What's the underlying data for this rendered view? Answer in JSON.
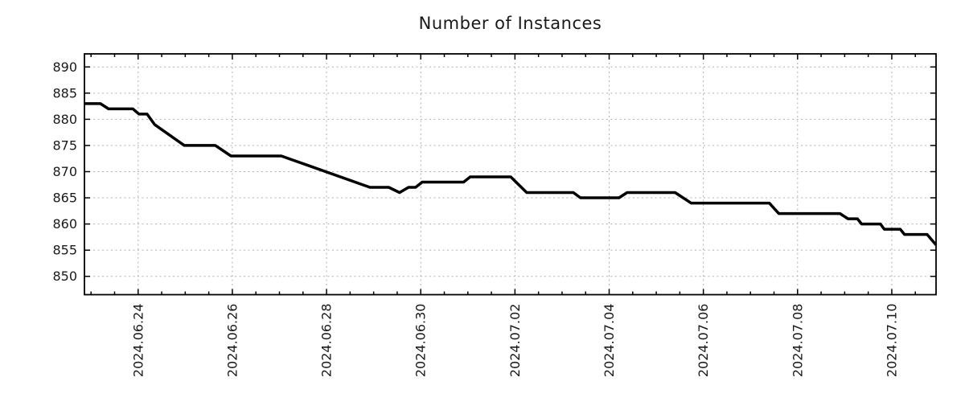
{
  "title": "Number of Instances",
  "colors": {
    "background": "#ffffff",
    "grid": "#b0b0b0",
    "axis": "#000000",
    "text": "#1a1a1a",
    "line": "#000000"
  },
  "chart_data": {
    "type": "line",
    "title": "Number of Instances",
    "grid": true,
    "legend": "none",
    "x_axis": {
      "tick_labels": [
        "2024.06.24",
        "2024.06.26",
        "2024.06.28",
        "2024.06.30",
        "2024.07.02",
        "2024.07.04",
        "2024.07.06",
        "2024.07.08",
        "2024.07.10"
      ],
      "tick_days": [
        0,
        2,
        4,
        6,
        8,
        10,
        12,
        14,
        16
      ],
      "minor_tick_interval_days": 0.5,
      "range_days": [
        -1.14,
        16.94
      ]
    },
    "y_axis": {
      "ticks": [
        850,
        855,
        860,
        865,
        870,
        875,
        880,
        885,
        890
      ],
      "range": [
        846.5,
        892.5
      ]
    },
    "series": [
      {
        "name": "instances",
        "color": "#000000",
        "width": 3.5,
        "points_day_value": [
          [
            -1.14,
            883
          ],
          [
            -0.8,
            883
          ],
          [
            -0.63,
            882
          ],
          [
            -0.11,
            882
          ],
          [
            0.02,
            881
          ],
          [
            0.19,
            881
          ],
          [
            0.35,
            879
          ],
          [
            0.98,
            875
          ],
          [
            1.64,
            875
          ],
          [
            1.97,
            873
          ],
          [
            3.04,
            873
          ],
          [
            4.92,
            867
          ],
          [
            5.32,
            867
          ],
          [
            5.55,
            866
          ],
          [
            5.74,
            867
          ],
          [
            5.89,
            867
          ],
          [
            6.03,
            868
          ],
          [
            6.91,
            868
          ],
          [
            7.05,
            869
          ],
          [
            7.91,
            869
          ],
          [
            8.25,
            866
          ],
          [
            9.24,
            866
          ],
          [
            9.39,
            865
          ],
          [
            10.21,
            865
          ],
          [
            10.38,
            866
          ],
          [
            11.4,
            866
          ],
          [
            11.74,
            864
          ],
          [
            13.4,
            864
          ],
          [
            13.6,
            862
          ],
          [
            14.9,
            862
          ],
          [
            15.07,
            861
          ],
          [
            15.27,
            861
          ],
          [
            15.36,
            860
          ],
          [
            15.76,
            860
          ],
          [
            15.84,
            859
          ],
          [
            16.18,
            859
          ],
          [
            16.27,
            858
          ],
          [
            16.75,
            858
          ],
          [
            16.94,
            856
          ]
        ]
      }
    ]
  }
}
